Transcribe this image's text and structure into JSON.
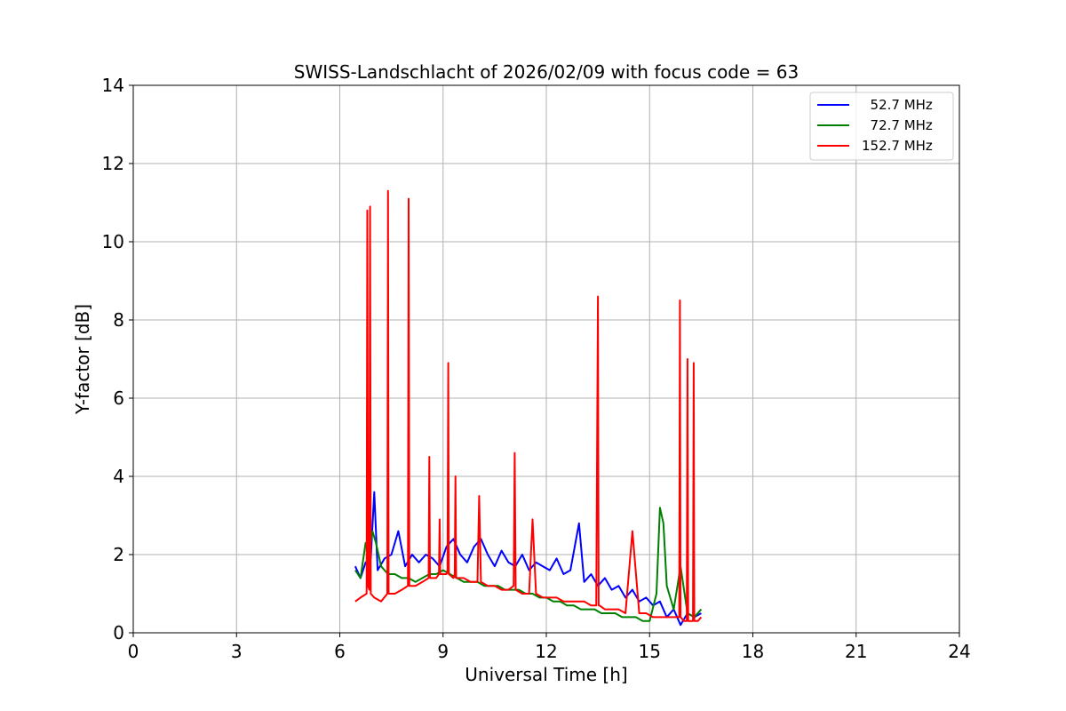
{
  "chart_data": {
    "type": "line",
    "title": "SWISS-Landschlacht of 2026/02/09 with focus code = 63",
    "xlabel": "Universal Time [h]",
    "ylabel": "Y-factor [dB]",
    "xlim": [
      0,
      24
    ],
    "ylim": [
      0,
      14
    ],
    "xticks": [
      0,
      3,
      6,
      9,
      12,
      15,
      18,
      21,
      24
    ],
    "yticks": [
      0,
      2,
      4,
      6,
      8,
      10,
      12,
      14
    ],
    "grid": true,
    "legend_position": "top-right",
    "series": [
      {
        "name": "  52.7 MHz",
        "color": "#0000ff",
        "x": [
          6.45,
          6.6,
          6.75,
          6.9,
          7.0,
          7.1,
          7.3,
          7.5,
          7.7,
          7.9,
          8.1,
          8.3,
          8.5,
          8.7,
          8.9,
          9.1,
          9.3,
          9.5,
          9.7,
          9.9,
          10.1,
          10.3,
          10.5,
          10.7,
          10.9,
          11.1,
          11.3,
          11.5,
          11.7,
          11.9,
          12.1,
          12.3,
          12.5,
          12.7,
          12.95,
          13.1,
          13.3,
          13.5,
          13.7,
          13.9,
          14.1,
          14.3,
          14.5,
          14.7,
          14.9,
          15.1,
          15.3,
          15.5,
          15.7,
          15.9,
          16.1,
          16.3,
          16.5
        ],
        "values": [
          1.7,
          1.4,
          1.8,
          1.9,
          3.6,
          1.6,
          1.9,
          2.0,
          2.6,
          1.7,
          2.0,
          1.8,
          2.0,
          1.9,
          1.7,
          2.2,
          2.4,
          2.0,
          1.8,
          2.2,
          2.4,
          2.0,
          1.7,
          2.1,
          1.8,
          1.7,
          2.0,
          1.6,
          1.8,
          1.7,
          1.6,
          1.9,
          1.5,
          1.6,
          2.8,
          1.3,
          1.5,
          1.2,
          1.4,
          1.1,
          1.2,
          0.9,
          1.1,
          0.8,
          0.9,
          0.7,
          0.8,
          0.4,
          0.6,
          0.2,
          0.5,
          0.4,
          0.5
        ]
      },
      {
        "name": "  72.7 MHz",
        "color": "#008000",
        "x": [
          6.45,
          6.6,
          6.75,
          6.85,
          6.95,
          7.05,
          7.2,
          7.4,
          7.6,
          7.8,
          8.0,
          8.2,
          8.4,
          8.6,
          8.8,
          9.0,
          9.2,
          9.4,
          9.6,
          9.8,
          10.0,
          10.2,
          10.4,
          10.6,
          10.8,
          11.0,
          11.2,
          11.4,
          11.6,
          11.8,
          12.0,
          12.2,
          12.4,
          12.6,
          12.8,
          13.0,
          13.2,
          13.4,
          13.6,
          13.8,
          14.0,
          14.2,
          14.4,
          14.6,
          14.8,
          15.0,
          15.2,
          15.3,
          15.4,
          15.5,
          15.7,
          15.9,
          16.1,
          16.3,
          16.5
        ],
        "values": [
          1.6,
          1.4,
          2.3,
          2.0,
          2.6,
          2.3,
          1.7,
          1.5,
          1.5,
          1.4,
          1.4,
          1.3,
          1.4,
          1.5,
          1.5,
          1.6,
          1.5,
          1.4,
          1.3,
          1.3,
          1.3,
          1.2,
          1.2,
          1.2,
          1.1,
          1.1,
          1.1,
          1.0,
          1.0,
          0.9,
          0.9,
          0.8,
          0.8,
          0.7,
          0.7,
          0.6,
          0.6,
          0.6,
          0.5,
          0.5,
          0.5,
          0.4,
          0.4,
          0.4,
          0.3,
          0.3,
          1.0,
          3.2,
          2.8,
          1.2,
          0.6,
          1.7,
          0.5,
          0.4,
          0.6
        ]
      },
      {
        "name": "152.7 MHz",
        "color": "#ff0000",
        "x": [
          6.45,
          6.6,
          6.78,
          6.8,
          6.82,
          6.86,
          6.88,
          6.9,
          7.0,
          7.2,
          7.38,
          7.4,
          7.42,
          7.6,
          7.8,
          7.98,
          8.0,
          8.02,
          8.2,
          8.4,
          8.58,
          8.6,
          8.62,
          8.8,
          8.88,
          8.9,
          8.92,
          9.1,
          9.13,
          9.15,
          9.17,
          9.3,
          9.34,
          9.36,
          9.38,
          9.6,
          9.8,
          10.0,
          10.05,
          10.1,
          10.3,
          10.5,
          10.7,
          10.9,
          11.05,
          11.08,
          11.11,
          11.3,
          11.5,
          11.6,
          11.7,
          11.9,
          12.1,
          12.3,
          12.5,
          12.7,
          12.9,
          13.1,
          13.3,
          13.45,
          13.5,
          13.52,
          13.54,
          13.7,
          13.9,
          14.1,
          14.3,
          14.5,
          14.7,
          14.9,
          15.1,
          15.3,
          15.5,
          15.7,
          15.86,
          15.88,
          15.9,
          16.0,
          16.08,
          16.1,
          16.12,
          16.2,
          16.26,
          16.28,
          16.3,
          16.4,
          16.5
        ],
        "values": [
          0.8,
          0.9,
          1.0,
          10.8,
          1.2,
          1.1,
          10.9,
          1.0,
          0.9,
          0.8,
          1.0,
          11.3,
          1.0,
          1.0,
          1.1,
          1.2,
          11.1,
          1.2,
          1.2,
          1.3,
          1.4,
          4.5,
          1.4,
          1.4,
          1.5,
          2.9,
          1.5,
          1.5,
          1.6,
          6.9,
          1.5,
          1.4,
          1.5,
          4.0,
          1.4,
          1.4,
          1.3,
          1.3,
          3.5,
          1.3,
          1.2,
          1.2,
          1.1,
          1.1,
          1.2,
          4.6,
          1.1,
          1.0,
          1.0,
          2.9,
          1.0,
          0.9,
          0.9,
          0.9,
          0.8,
          0.8,
          0.8,
          0.8,
          0.7,
          0.7,
          8.6,
          0.7,
          0.7,
          0.6,
          0.6,
          0.6,
          0.5,
          2.6,
          0.5,
          0.5,
          0.4,
          0.4,
          0.4,
          0.4,
          0.4,
          8.5,
          0.4,
          0.3,
          0.3,
          7.0,
          0.3,
          0.3,
          0.3,
          6.9,
          0.3,
          0.3,
          0.4
        ]
      }
    ]
  }
}
